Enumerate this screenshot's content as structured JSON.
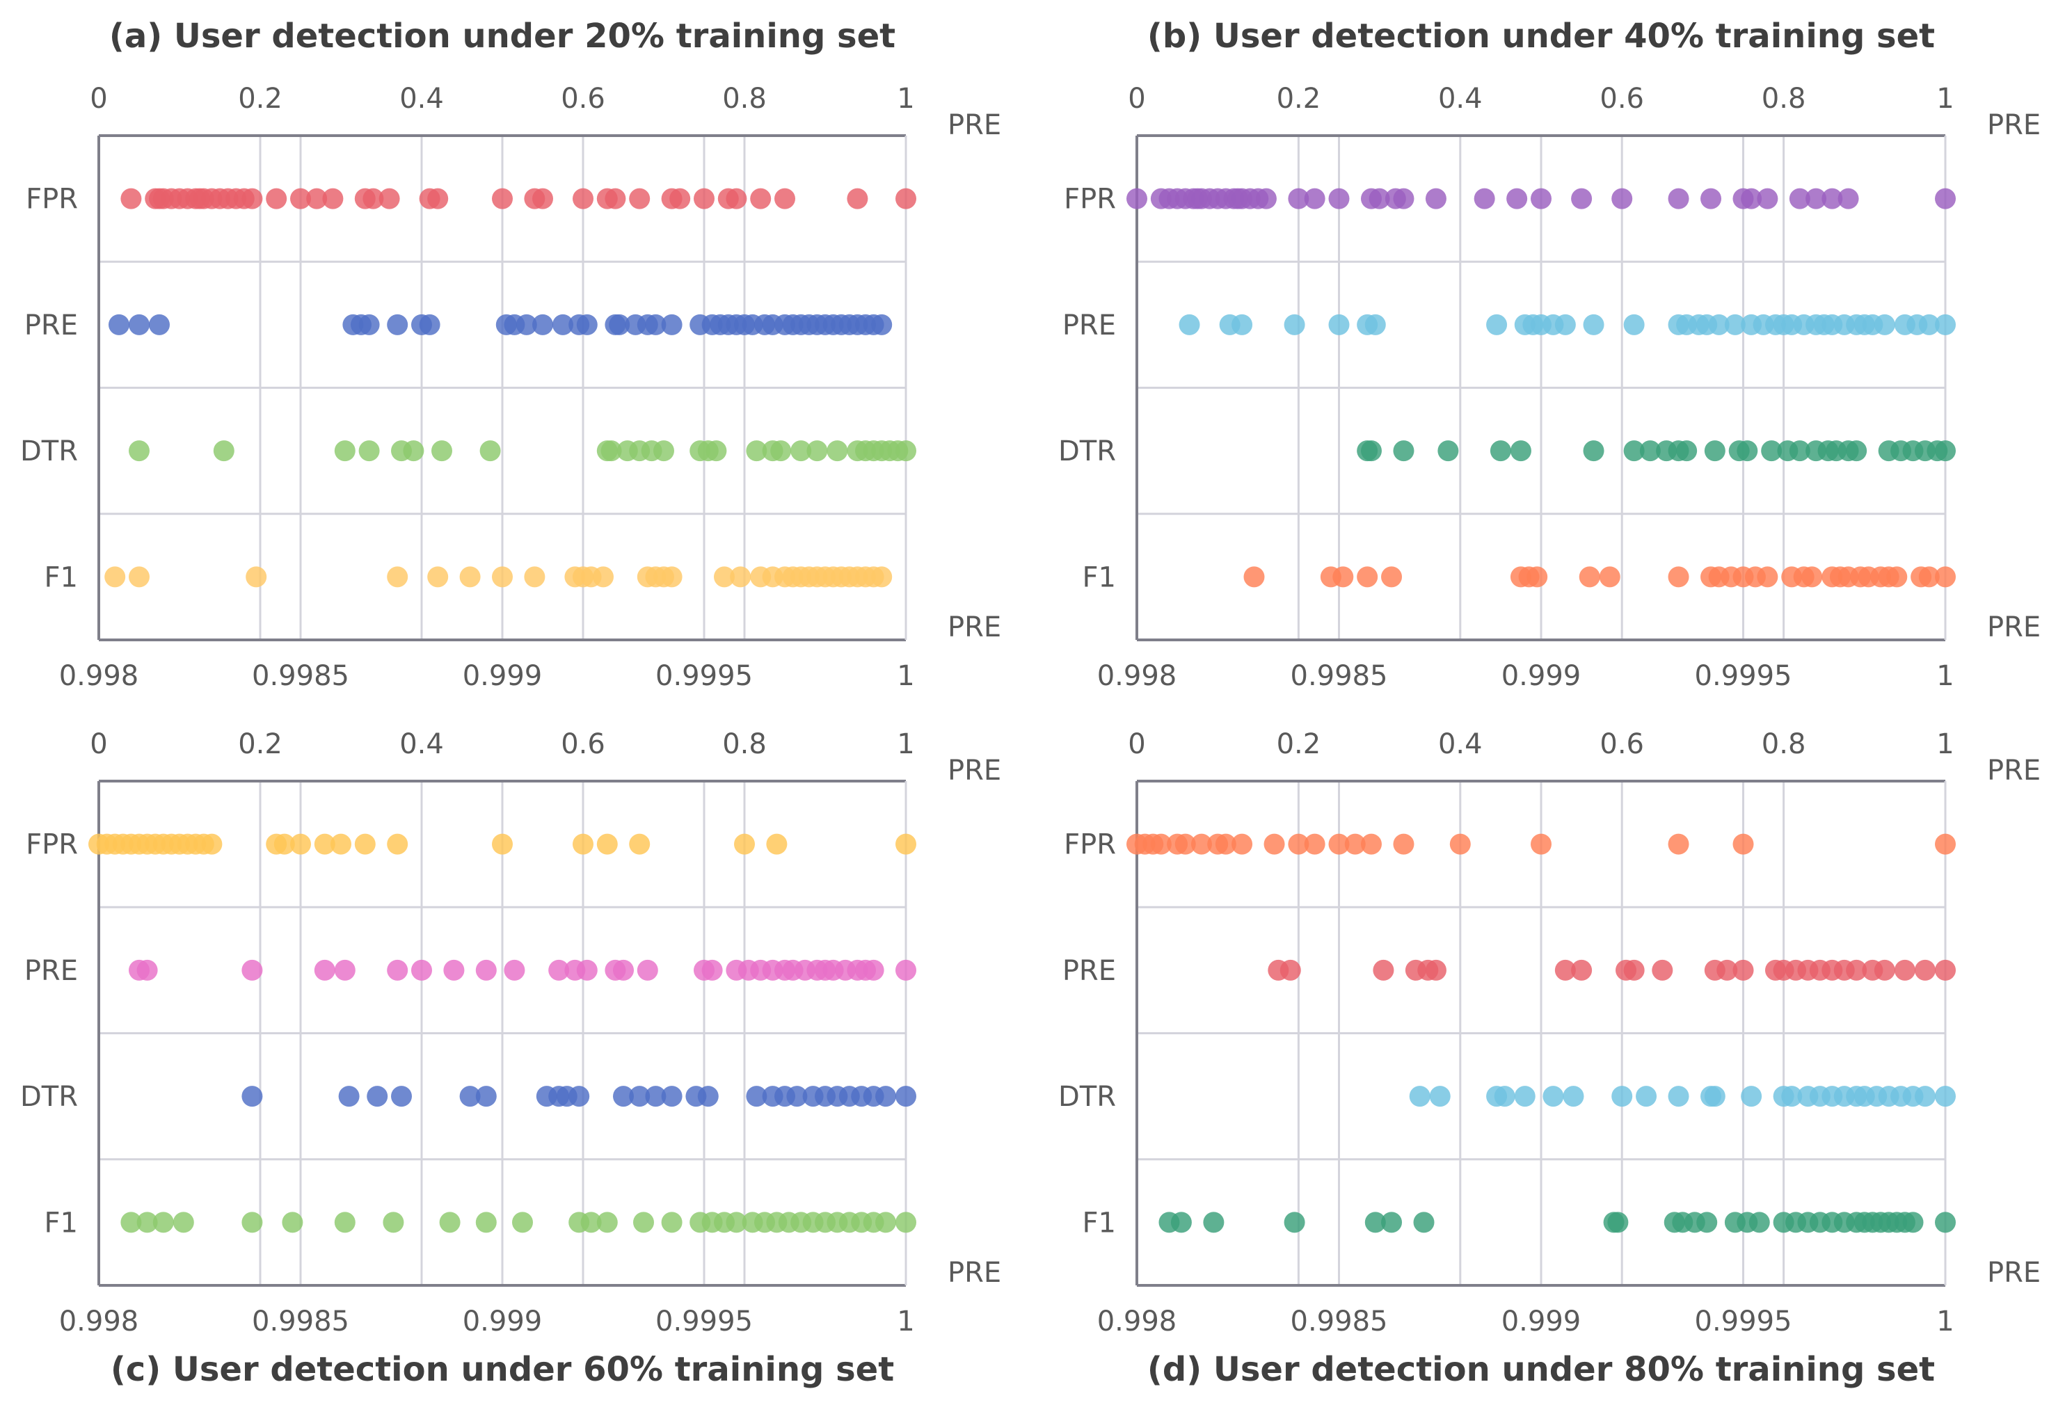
{
  "chart_data": [
    {
      "type": "scatter",
      "title": "(a) User detection under 20% training set",
      "title_position": "top",
      "top_axis": {
        "label": "PRE",
        "range": [
          0,
          1
        ],
        "ticks": [
          "0",
          "0.2",
          "0.4",
          "0.6",
          "0.8",
          "1"
        ]
      },
      "bottom_axis": {
        "label": "PRE",
        "range": [
          0.998,
          1
        ],
        "ticks": [
          "0.998",
          "0.9985",
          "0.999",
          "0.9995",
          "1"
        ]
      },
      "categories": [
        "FPR",
        "PRE",
        "DTR",
        "F1"
      ],
      "grid": true,
      "series": [
        {
          "category": "FPR",
          "axis": "top",
          "color": "#e8606a",
          "values": [
            0.04,
            0.07,
            0.075,
            0.08,
            0.09,
            0.1,
            0.11,
            0.12,
            0.125,
            0.13,
            0.14,
            0.15,
            0.16,
            0.17,
            0.18,
            0.19,
            0.22,
            0.25,
            0.27,
            0.29,
            0.33,
            0.34,
            0.36,
            0.41,
            0.42,
            0.5,
            0.54,
            0.55,
            0.6,
            0.63,
            0.64,
            0.67,
            0.71,
            0.72,
            0.75,
            0.78,
            0.79,
            0.82,
            0.85,
            0.94,
            1.0
          ]
        },
        {
          "category": "PRE",
          "axis": "bottom",
          "color": "#4f6fc6",
          "values": [
            0.99805,
            0.9981,
            0.99815,
            0.99863,
            0.99865,
            0.99867,
            0.99874,
            0.9988,
            0.99882,
            0.99901,
            0.99903,
            0.99906,
            0.9991,
            0.99915,
            0.99919,
            0.99921,
            0.99928,
            0.99929,
            0.99933,
            0.99936,
            0.99938,
            0.99942,
            0.99949,
            0.99952,
            0.99954,
            0.99956,
            0.99958,
            0.9996,
            0.99962,
            0.99965,
            0.99967,
            0.9997,
            0.99972,
            0.99974,
            0.99976,
            0.99978,
            0.9998,
            0.99982,
            0.99984,
            0.99986,
            0.99988,
            0.9999,
            0.99992,
            0.99994
          ]
        },
        {
          "category": "DTR",
          "axis": "bottom",
          "color": "#8cc96c",
          "values": [
            0.9981,
            0.99831,
            0.99861,
            0.99867,
            0.99875,
            0.99878,
            0.99885,
            0.99897,
            0.99926,
            0.99927,
            0.99931,
            0.99934,
            0.99937,
            0.9994,
            0.99949,
            0.99951,
            0.99953,
            0.99963,
            0.99967,
            0.99969,
            0.99974,
            0.99978,
            0.99983,
            0.99988,
            0.9999,
            0.99992,
            0.99994,
            0.99996,
            0.99998,
            1.0
          ]
        },
        {
          "category": "F1",
          "axis": "bottom",
          "color": "#ffc866",
          "values": [
            0.99804,
            0.9981,
            0.99839,
            0.99874,
            0.99884,
            0.99892,
            0.999,
            0.99908,
            0.99918,
            0.9992,
            0.99922,
            0.99925,
            0.99936,
            0.99938,
            0.9994,
            0.99942,
            0.99955,
            0.99959,
            0.99964,
            0.99967,
            0.9997,
            0.99972,
            0.99974,
            0.99976,
            0.99978,
            0.9998,
            0.99982,
            0.99984,
            0.99986,
            0.99988,
            0.9999,
            0.99992,
            0.99994
          ]
        }
      ]
    },
    {
      "type": "scatter",
      "title": "(b) User detection under 40% training set",
      "title_position": "top",
      "top_axis": {
        "label": "PRE",
        "range": [
          0,
          1
        ],
        "ticks": [
          "0",
          "0.2",
          "0.4",
          "0.6",
          "0.8",
          "1"
        ]
      },
      "bottom_axis": {
        "label": "PRE",
        "range": [
          0.998,
          1
        ],
        "ticks": [
          "0.998",
          "0.9985",
          "0.999",
          "0.9995",
          "1"
        ]
      },
      "categories": [
        "FPR",
        "PRE",
        "DTR",
        "F1"
      ],
      "grid": true,
      "series": [
        {
          "category": "FPR",
          "axis": "top",
          "color": "#9b5fc0",
          "values": [
            0.0,
            0.03,
            0.04,
            0.05,
            0.06,
            0.07,
            0.075,
            0.08,
            0.09,
            0.1,
            0.11,
            0.12,
            0.125,
            0.13,
            0.14,
            0.15,
            0.16,
            0.2,
            0.22,
            0.25,
            0.29,
            0.3,
            0.32,
            0.33,
            0.37,
            0.43,
            0.47,
            0.5,
            0.55,
            0.6,
            0.67,
            0.71,
            0.75,
            0.76,
            0.78,
            0.82,
            0.84,
            0.86,
            0.88,
            1.0
          ]
        },
        {
          "category": "PRE",
          "axis": "bottom",
          "color": "#6fc2e0",
          "values": [
            0.99813,
            0.99823,
            0.99826,
            0.99839,
            0.9985,
            0.99857,
            0.99859,
            0.99889,
            0.99896,
            0.99898,
            0.999,
            0.99903,
            0.99906,
            0.99913,
            0.99923,
            0.99934,
            0.99936,
            0.99939,
            0.99941,
            0.99944,
            0.99948,
            0.99952,
            0.99955,
            0.99958,
            0.9996,
            0.99962,
            0.99965,
            0.99968,
            0.9997,
            0.99972,
            0.99975,
            0.99978,
            0.9998,
            0.99982,
            0.99985,
            0.9999,
            0.99993,
            0.99996,
            1.0
          ]
        },
        {
          "category": "DTR",
          "axis": "bottom",
          "color": "#3aa07a",
          "values": [
            0.99857,
            0.99858,
            0.99866,
            0.99877,
            0.9989,
            0.99895,
            0.99913,
            0.99923,
            0.99927,
            0.99931,
            0.99934,
            0.99936,
            0.99943,
            0.99949,
            0.99951,
            0.99957,
            0.99961,
            0.99964,
            0.99968,
            0.99971,
            0.99973,
            0.99976,
            0.99978,
            0.99986,
            0.99989,
            0.99992,
            0.99995,
            0.99998,
            1.0
          ]
        },
        {
          "category": "F1",
          "axis": "bottom",
          "color": "#ff8055",
          "values": [
            0.99829,
            0.99848,
            0.99851,
            0.99857,
            0.99863,
            0.99895,
            0.99897,
            0.99899,
            0.99912,
            0.99917,
            0.99934,
            0.99942,
            0.99944,
            0.99947,
            0.9995,
            0.99953,
            0.99956,
            0.99962,
            0.99965,
            0.99967,
            0.99972,
            0.99974,
            0.99976,
            0.99979,
            0.99981,
            0.99984,
            0.99986,
            0.99988,
            0.99994,
            0.99996,
            1.0
          ]
        }
      ]
    },
    {
      "type": "scatter",
      "title": "(c) User detection under 60% training set",
      "title_position": "bottom",
      "top_axis": {
        "label": "PRE",
        "range": [
          0,
          1
        ],
        "ticks": [
          "0",
          "0.2",
          "0.4",
          "0.6",
          "0.8",
          "1"
        ]
      },
      "bottom_axis": {
        "label": "PRE",
        "range": [
          0.998,
          1
        ],
        "ticks": [
          "0.998",
          "0.9985",
          "0.999",
          "0.9995",
          "1"
        ]
      },
      "categories": [
        "FPR",
        "PRE",
        "DTR",
        "F1"
      ],
      "grid": true,
      "series": [
        {
          "category": "FPR",
          "axis": "top",
          "color": "#ffc655",
          "values": [
            0.0,
            0.01,
            0.02,
            0.03,
            0.04,
            0.05,
            0.06,
            0.07,
            0.08,
            0.09,
            0.1,
            0.11,
            0.12,
            0.13,
            0.14,
            0.22,
            0.23,
            0.25,
            0.28,
            0.3,
            0.33,
            0.37,
            0.5,
            0.6,
            0.63,
            0.67,
            0.8,
            0.84,
            1.0
          ]
        },
        {
          "category": "PRE",
          "axis": "bottom",
          "color": "#e870c8",
          "values": [
            0.9981,
            0.99812,
            0.99838,
            0.99856,
            0.99861,
            0.99874,
            0.9988,
            0.99888,
            0.99896,
            0.99903,
            0.99914,
            0.99918,
            0.99921,
            0.99928,
            0.9993,
            0.99936,
            0.9995,
            0.99952,
            0.99958,
            0.99961,
            0.99964,
            0.99967,
            0.9997,
            0.99972,
            0.99975,
            0.99978,
            0.9998,
            0.99982,
            0.99985,
            0.99988,
            0.9999,
            0.99992,
            1.0
          ]
        },
        {
          "category": "DTR",
          "axis": "bottom",
          "color": "#4f6fc6",
          "values": [
            0.99838,
            0.99862,
            0.99869,
            0.99875,
            0.99892,
            0.99896,
            0.99911,
            0.99914,
            0.99916,
            0.99919,
            0.9993,
            0.99934,
            0.99938,
            0.99942,
            0.99948,
            0.99951,
            0.99963,
            0.99967,
            0.9997,
            0.99973,
            0.99977,
            0.9998,
            0.99983,
            0.99986,
            0.99989,
            0.99992,
            0.99995,
            1.0
          ]
        },
        {
          "category": "F1",
          "axis": "bottom",
          "color": "#8cc96c",
          "values": [
            0.99808,
            0.99812,
            0.99816,
            0.99821,
            0.99838,
            0.99848,
            0.99861,
            0.99873,
            0.99887,
            0.99896,
            0.99905,
            0.99919,
            0.99922,
            0.99926,
            0.99935,
            0.99942,
            0.99949,
            0.99952,
            0.99955,
            0.99958,
            0.99962,
            0.99965,
            0.99968,
            0.99971,
            0.99974,
            0.99977,
            0.9998,
            0.99983,
            0.99986,
            0.99989,
            0.99992,
            0.99995,
            1.0
          ]
        }
      ]
    },
    {
      "type": "scatter",
      "title": "(d) User detection under 80% training set",
      "title_position": "bottom",
      "top_axis": {
        "label": "PRE",
        "range": [
          0,
          1
        ],
        "ticks": [
          "0",
          "0.2",
          "0.4",
          "0.6",
          "0.8",
          "1"
        ]
      },
      "bottom_axis": {
        "label": "PRE",
        "range": [
          0.998,
          1
        ],
        "ticks": [
          "0.998",
          "0.9985",
          "0.999",
          "0.9995",
          "1"
        ]
      },
      "categories": [
        "FPR",
        "PRE",
        "DTR",
        "F1"
      ],
      "grid": true,
      "series": [
        {
          "category": "FPR",
          "axis": "top",
          "color": "#ff8055",
          "values": [
            0.0,
            0.01,
            0.02,
            0.03,
            0.05,
            0.06,
            0.08,
            0.1,
            0.11,
            0.13,
            0.17,
            0.2,
            0.22,
            0.25,
            0.27,
            0.29,
            0.33,
            0.4,
            0.5,
            0.67,
            0.75,
            1.0
          ]
        },
        {
          "category": "PRE",
          "axis": "bottom",
          "color": "#e8606a",
          "values": [
            0.99835,
            0.99838,
            0.99861,
            0.99869,
            0.99872,
            0.99874,
            0.99906,
            0.9991,
            0.99921,
            0.99923,
            0.9993,
            0.99943,
            0.99946,
            0.9995,
            0.99958,
            0.9996,
            0.99963,
            0.99966,
            0.99969,
            0.99972,
            0.99975,
            0.99978,
            0.99982,
            0.99985,
            0.9999,
            0.99995,
            1.0
          ]
        },
        {
          "category": "DTR",
          "axis": "bottom",
          "color": "#6fc2e0",
          "values": [
            0.9987,
            0.99875,
            0.99889,
            0.99891,
            0.99896,
            0.99903,
            0.99908,
            0.9992,
            0.99926,
            0.99934,
            0.99942,
            0.99943,
            0.99952,
            0.9996,
            0.99962,
            0.99966,
            0.99969,
            0.99972,
            0.99975,
            0.99978,
            0.9998,
            0.99983,
            0.99986,
            0.99989,
            0.99992,
            0.99995,
            1.0
          ]
        },
        {
          "category": "F1",
          "axis": "bottom",
          "color": "#3aa07a",
          "values": [
            0.99808,
            0.99811,
            0.99819,
            0.99839,
            0.99859,
            0.99863,
            0.99871,
            0.99918,
            0.99919,
            0.99933,
            0.99935,
            0.99938,
            0.99941,
            0.99948,
            0.99951,
            0.99954,
            0.9996,
            0.99963,
            0.99966,
            0.99969,
            0.99972,
            0.99975,
            0.99978,
            0.9998,
            0.99982,
            0.99984,
            0.99986,
            0.99988,
            0.9999,
            0.99992,
            1.0
          ]
        }
      ]
    }
  ]
}
